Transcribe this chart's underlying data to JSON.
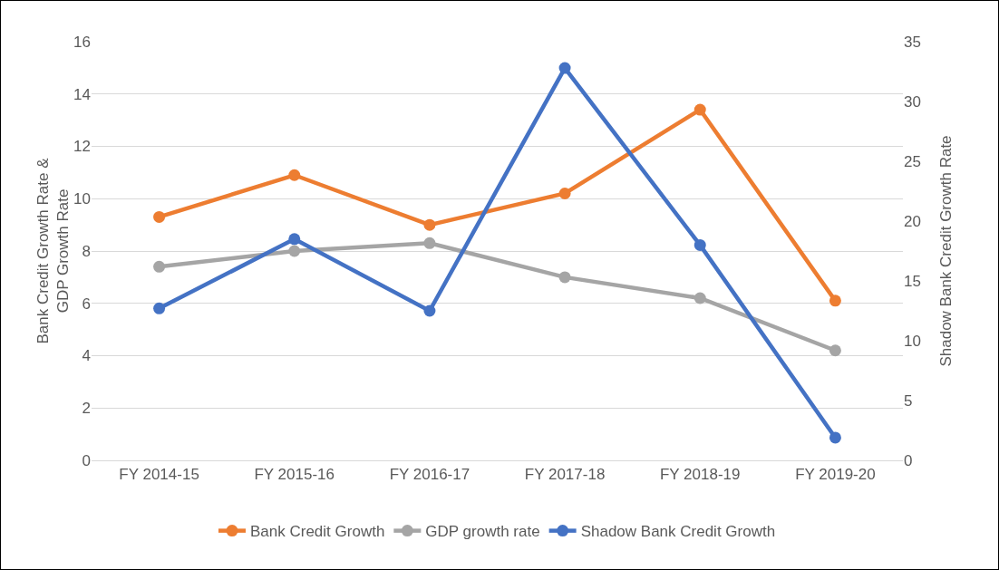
{
  "chart_data": {
    "type": "line",
    "ylabel": "Bank Credit Growth Rate &\nGDP Growth Rate",
    "y2label": "Shadow Bank Credit Growth Rate",
    "categories": [
      "FY 2014-15",
      "FY 2015-16",
      "FY 2016-17",
      "FY 2017-18",
      "FY 2018-19",
      "FY 2019-20"
    ],
    "series": [
      {
        "name": "Bank Credit Growth",
        "color": "#ed7d31",
        "values": [
          9.3,
          10.9,
          9.0,
          10.2,
          13.4,
          6.1
        ]
      },
      {
        "name": "GDP growth rate",
        "color": "#a5a5a5",
        "values": [
          7.4,
          8.0,
          8.3,
          7.0,
          6.2,
          4.2
        ]
      },
      {
        "name": "Shadow Bank Credit Growth",
        "color": "#4472c4",
        "axis": "y2",
        "values": [
          12.7,
          18.5,
          12.5,
          32.8,
          18.0,
          1.9
        ]
      }
    ],
    "ylim": [
      0,
      16
    ],
    "yticks": [
      0,
      2,
      4,
      6,
      8,
      10,
      12,
      14,
      16
    ],
    "y2lim": [
      0,
      35
    ],
    "y2ticks": [
      0,
      5,
      10,
      15,
      20,
      25,
      30,
      35
    ],
    "grid": "y",
    "legend": "bottom",
    "marker": "circle",
    "line_style": "solid"
  }
}
